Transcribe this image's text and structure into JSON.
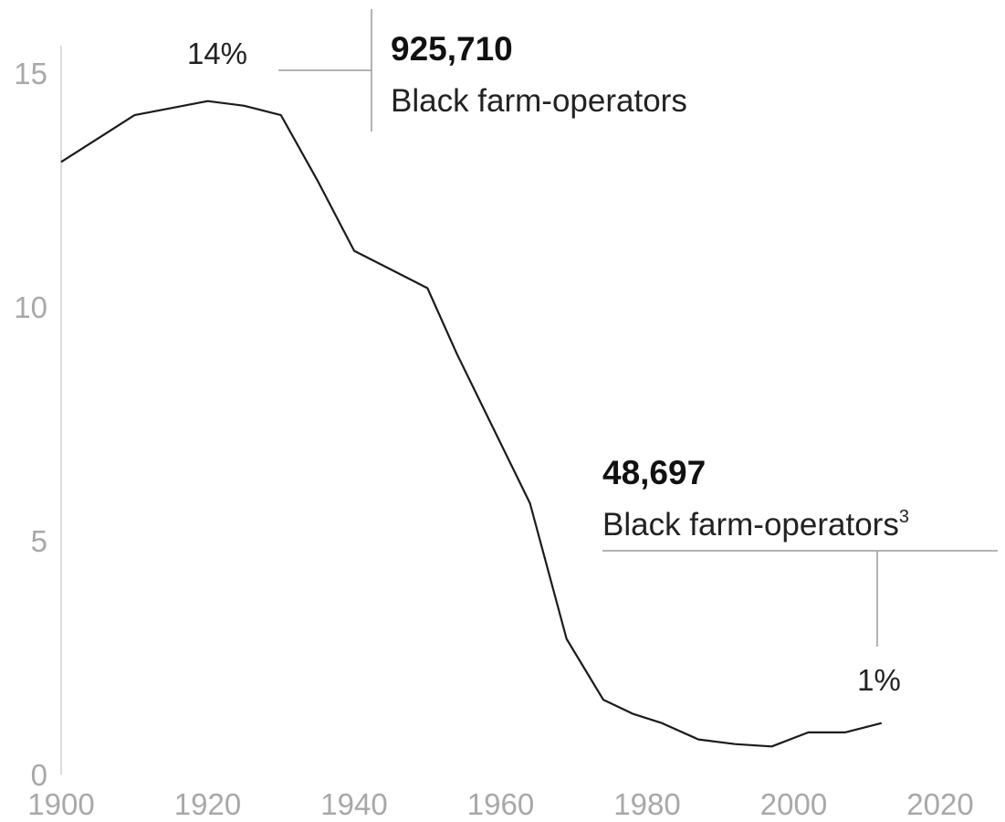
{
  "chart_data": {
    "type": "line",
    "x": [
      1900,
      1910,
      1920,
      1925,
      1930,
      1935,
      1940,
      1945,
      1950,
      1954,
      1959,
      1964,
      1969,
      1974,
      1978,
      1982,
      1987,
      1992,
      1997,
      2002,
      2007,
      2012
    ],
    "series": [
      {
        "values": [
          13.1,
          14.1,
          14.4,
          14.3,
          14.1,
          12.7,
          11.2,
          10.8,
          10.4,
          9.0,
          7.4,
          5.8,
          2.9,
          1.6,
          1.3,
          1.1,
          0.75,
          0.65,
          0.6,
          0.9,
          0.9,
          1.1
        ]
      }
    ],
    "xlim": [
      1900,
      2020
    ],
    "ylim": [
      0,
      15
    ],
    "xticks": [
      "1900",
      "1920",
      "1940",
      "1960",
      "1980",
      "2000",
      "2020"
    ],
    "yticks": [
      "0",
      "5",
      "10",
      "15"
    ],
    "grid": false,
    "data_labels": [
      {
        "x": 1920,
        "text": "14%"
      },
      {
        "x": 2012,
        "text": "1%"
      }
    ],
    "annotations": [
      {
        "x": 1920,
        "number": "925,710",
        "text": "Black farm-operators",
        "sup": ""
      },
      {
        "x": 2012,
        "number": "48,697",
        "text": "Black farm-operators",
        "sup": "3"
      }
    ],
    "colors": {
      "line": "#1b1b1b",
      "tick": "#a8a8a8",
      "text": "#222222"
    }
  }
}
